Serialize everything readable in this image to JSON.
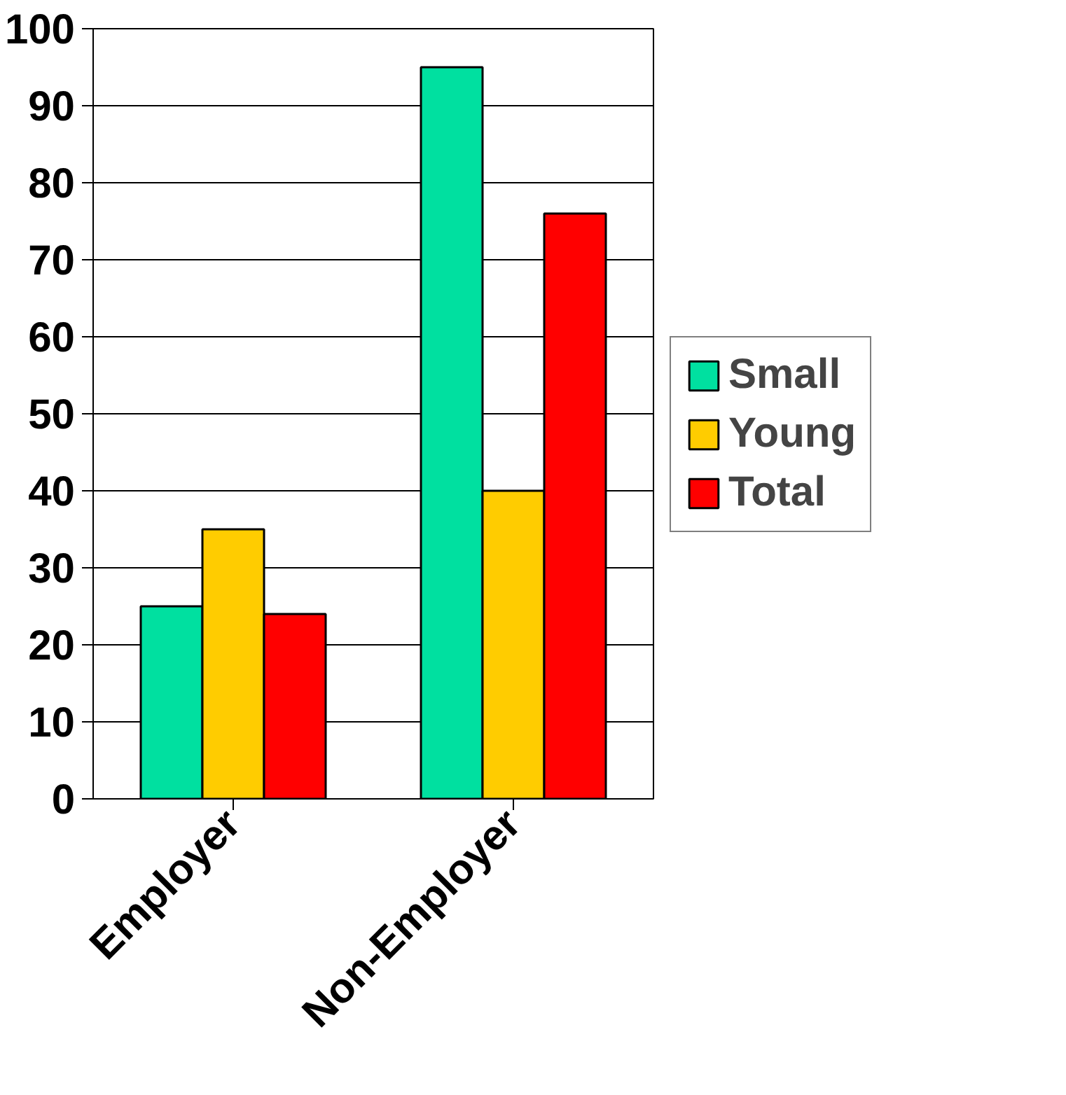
{
  "chart_data": {
    "type": "bar",
    "categories": [
      "Employer",
      "Non-Employer"
    ],
    "series": [
      {
        "name": "Small",
        "color": "#00e0a0",
        "values": [
          25,
          95
        ]
      },
      {
        "name": "Young",
        "color": "#ffcc00",
        "values": [
          35,
          40
        ]
      },
      {
        "name": "Total",
        "color": "#ff0000",
        "values": [
          24,
          76
        ]
      }
    ],
    "ylim": [
      0,
      100
    ],
    "yticks": [
      0,
      10,
      20,
      30,
      40,
      50,
      60,
      70,
      80,
      90,
      100
    ],
    "grid": "y",
    "legend": "right"
  }
}
